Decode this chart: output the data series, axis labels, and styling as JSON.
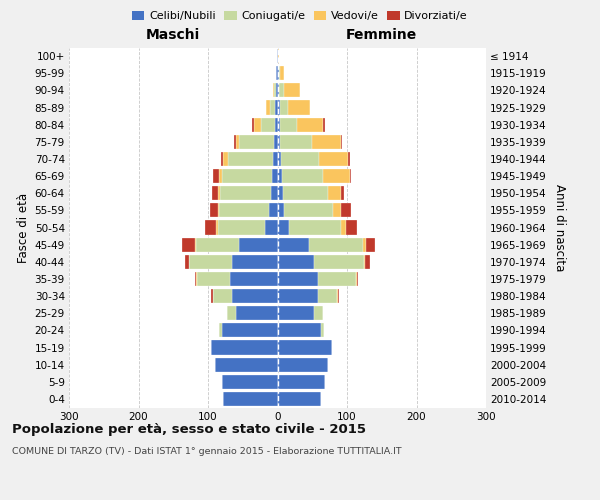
{
  "age_groups": [
    "0-4",
    "5-9",
    "10-14",
    "15-19",
    "20-24",
    "25-29",
    "30-34",
    "35-39",
    "40-44",
    "45-49",
    "50-54",
    "55-59",
    "60-64",
    "65-69",
    "70-74",
    "75-79",
    "80-84",
    "85-89",
    "90-94",
    "95-99",
    "100+"
  ],
  "birth_years": [
    "2010-2014",
    "2005-2009",
    "2000-2004",
    "1995-1999",
    "1990-1994",
    "1985-1989",
    "1980-1984",
    "1975-1979",
    "1970-1974",
    "1965-1969",
    "1960-1964",
    "1955-1959",
    "1950-1954",
    "1945-1949",
    "1940-1944",
    "1935-1939",
    "1930-1934",
    "1925-1929",
    "1920-1924",
    "1915-1919",
    "≤ 1914"
  ],
  "maschi_celibi": [
    78,
    80,
    90,
    95,
    80,
    60,
    65,
    68,
    65,
    55,
    18,
    12,
    10,
    8,
    6,
    5,
    4,
    3,
    2,
    2,
    1
  ],
  "maschi_coniugati": [
    0,
    0,
    0,
    0,
    4,
    12,
    28,
    48,
    62,
    62,
    68,
    72,
    73,
    72,
    65,
    50,
    20,
    8,
    3,
    0,
    0
  ],
  "maschi_vedovi": [
    0,
    0,
    0,
    0,
    0,
    0,
    0,
    1,
    1,
    1,
    2,
    2,
    3,
    4,
    7,
    5,
    10,
    5,
    2,
    0,
    0
  ],
  "maschi_divorziati": [
    0,
    0,
    0,
    0,
    0,
    0,
    2,
    1,
    5,
    20,
    17,
    11,
    8,
    9,
    4,
    2,
    3,
    0,
    0,
    0,
    0
  ],
  "femmine_celibi": [
    62,
    68,
    72,
    78,
    62,
    52,
    58,
    58,
    52,
    45,
    16,
    10,
    8,
    6,
    5,
    4,
    3,
    3,
    2,
    2,
    1
  ],
  "femmine_coniugati": [
    0,
    0,
    0,
    1,
    5,
    14,
    28,
    55,
    72,
    78,
    75,
    70,
    65,
    60,
    55,
    45,
    25,
    12,
    8,
    2,
    0
  ],
  "femmine_vedovi": [
    0,
    0,
    0,
    0,
    0,
    0,
    1,
    1,
    2,
    4,
    7,
    12,
    18,
    38,
    42,
    42,
    38,
    32,
    22,
    5,
    1
  ],
  "femmine_divorziati": [
    0,
    0,
    0,
    0,
    0,
    0,
    2,
    2,
    7,
    14,
    17,
    14,
    5,
    2,
    2,
    2,
    2,
    0,
    0,
    0,
    0
  ],
  "colors": {
    "celibi": "#4472c4",
    "coniugati": "#c6d9a0",
    "vedovi": "#fac55e",
    "divorziati": "#c0392b"
  },
  "title": "Popolazione per età, sesso e stato civile - 2015",
  "subtitle": "COMUNE DI TARZO (TV) - Dati ISTAT 1° gennaio 2015 - Elaborazione TUTTITALIA.IT",
  "xlabel_left": "Maschi",
  "xlabel_right": "Femmine",
  "ylabel_left": "Fasce di età",
  "ylabel_right": "Anni di nascita",
  "xlim": 300,
  "bg_color": "#f0f0f0",
  "plot_bg": "#ffffff"
}
